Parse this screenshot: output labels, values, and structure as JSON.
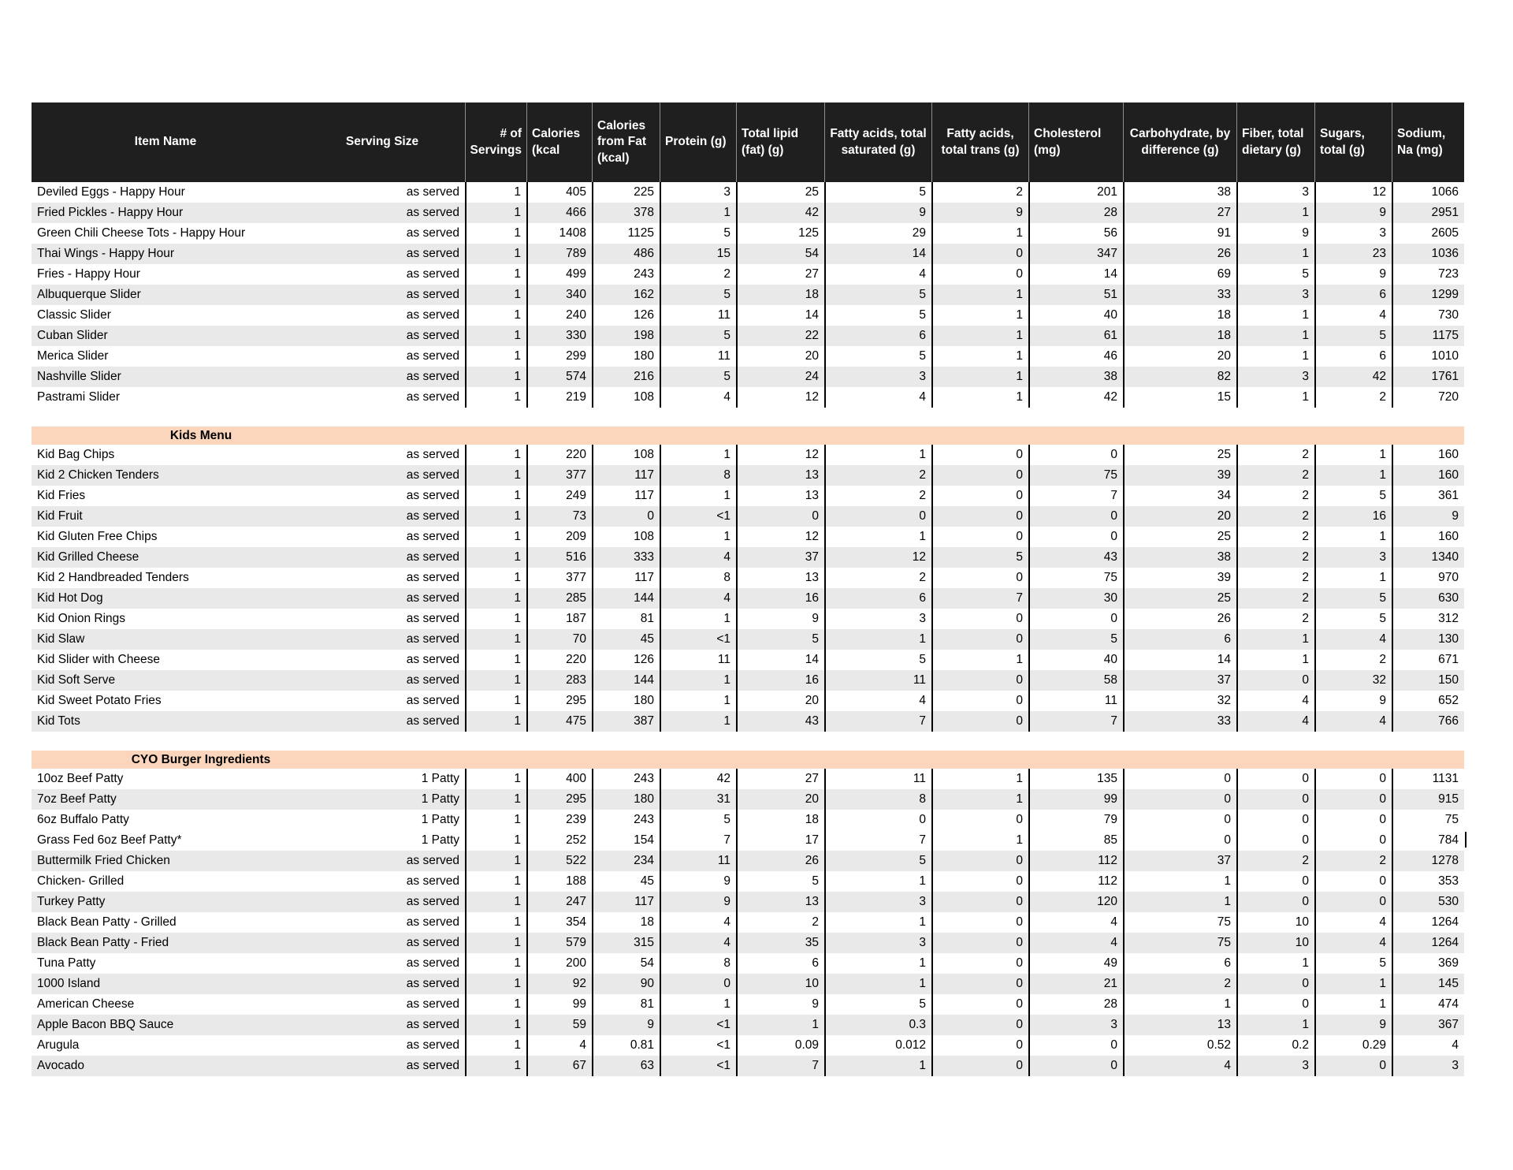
{
  "colors": {
    "header_bg": "#1f1f1f",
    "header_text": "#ffffff",
    "row_stripe": "#e9e9e9",
    "section_bar_bg": "#fbd6bc",
    "grid_line": "#000000"
  },
  "table": {
    "columns": [
      "Item Name",
      "Serving Size",
      "# of Servings",
      "Calories (kcal",
      "Calories from Fat (kcal)",
      "Protein (g)",
      "Total lipid (fat) (g)",
      "Fatty acids, total saturated (g)",
      "Fatty acids, total trans (g)",
      "Cholesterol (mg)",
      "Carbohydrate, by difference (g)",
      "Fiber, total dietary (g)",
      "Sugars, total (g)",
      "Sodium, Na (mg)"
    ]
  },
  "sections": [
    {
      "title": "",
      "rows": [
        {
          "name": "Deviled Eggs - Happy Hour",
          "serving": "as served",
          "shaded": false,
          "values": [
            "1",
            "405",
            "225",
            "3",
            "25",
            "5",
            "2",
            "201",
            "38",
            "3",
            "12",
            "1066"
          ]
        },
        {
          "name": "Fried Pickles - Happy Hour",
          "serving": "as served",
          "shaded": true,
          "values": [
            "1",
            "466",
            "378",
            "1",
            "42",
            "9",
            "9",
            "28",
            "27",
            "1",
            "9",
            "2951"
          ]
        },
        {
          "name": "Green Chili Cheese Tots - Happy Hour",
          "serving": "as served",
          "shaded": false,
          "values": [
            "1",
            "1408",
            "1125",
            "5",
            "125",
            "29",
            "1",
            "56",
            "91",
            "9",
            "3",
            "2605"
          ]
        },
        {
          "name": "Thai Wings - Happy Hour",
          "serving": "as served",
          "shaded": true,
          "values": [
            "1",
            "789",
            "486",
            "15",
            "54",
            "14",
            "0",
            "347",
            "26",
            "1",
            "23",
            "1036"
          ]
        },
        {
          "name": "Fries - Happy Hour",
          "serving": "as served",
          "shaded": false,
          "values": [
            "1",
            "499",
            "243",
            "2",
            "27",
            "4",
            "0",
            "14",
            "69",
            "5",
            "9",
            "723"
          ]
        },
        {
          "name": "Albuquerque Slider",
          "serving": "as served",
          "shaded": true,
          "values": [
            "1",
            "340",
            "162",
            "5",
            "18",
            "5",
            "1",
            "51",
            "33",
            "3",
            "6",
            "1299"
          ]
        },
        {
          "name": "Classic Slider",
          "serving": "as served",
          "shaded": false,
          "values": [
            "1",
            "240",
            "126",
            "11",
            "14",
            "5",
            "1",
            "40",
            "18",
            "1",
            "4",
            "730"
          ]
        },
        {
          "name": "Cuban Slider",
          "serving": "as served",
          "shaded": true,
          "values": [
            "1",
            "330",
            "198",
            "5",
            "22",
            "6",
            "1",
            "61",
            "18",
            "1",
            "5",
            "1175"
          ]
        },
        {
          "name": "Merica Slider",
          "serving": "as served",
          "shaded": false,
          "values": [
            "1",
            "299",
            "180",
            "11",
            "20",
            "5",
            "1",
            "46",
            "20",
            "1",
            "6",
            "1010"
          ]
        },
        {
          "name": "Nashville Slider",
          "serving": "as served",
          "shaded": true,
          "values": [
            "1",
            "574",
            "216",
            "5",
            "24",
            "3",
            "1",
            "38",
            "82",
            "3",
            "42",
            "1761"
          ]
        },
        {
          "name": "Pastrami Slider",
          "serving": "as served",
          "shaded": false,
          "values": [
            "1",
            "219",
            "108",
            "4",
            "12",
            "4",
            "1",
            "42",
            "15",
            "1",
            "2",
            "720"
          ]
        }
      ]
    },
    {
      "title": "Kids Menu",
      "rows": [
        {
          "name": "Kid Bag Chips",
          "serving": "as served",
          "shaded": false,
          "values": [
            "1",
            "220",
            "108",
            "1",
            "12",
            "1",
            "0",
            "0",
            "25",
            "2",
            "1",
            "160"
          ]
        },
        {
          "name": "Kid 2 Chicken Tenders",
          "serving": "as served",
          "shaded": true,
          "values": [
            "1",
            "377",
            "117",
            "8",
            "13",
            "2",
            "0",
            "75",
            "39",
            "2",
            "1",
            "160"
          ]
        },
        {
          "name": "Kid Fries",
          "serving": "as served",
          "shaded": false,
          "values": [
            "1",
            "249",
            "117",
            "1",
            "13",
            "2",
            "0",
            "7",
            "34",
            "2",
            "5",
            "361"
          ]
        },
        {
          "name": "Kid Fruit",
          "serving": "as served",
          "shaded": true,
          "values": [
            "1",
            "73",
            "0",
            "<1",
            "0",
            "0",
            "0",
            "0",
            "20",
            "2",
            "16",
            "9"
          ]
        },
        {
          "name": "Kid Gluten Free Chips",
          "serving": "as served",
          "shaded": false,
          "values": [
            "1",
            "209",
            "108",
            "1",
            "12",
            "1",
            "0",
            "0",
            "25",
            "2",
            "1",
            "160"
          ]
        },
        {
          "name": "Kid Grilled Cheese",
          "serving": "as served",
          "shaded": true,
          "values": [
            "1",
            "516",
            "333",
            "4",
            "37",
            "12",
            "5",
            "43",
            "38",
            "2",
            "3",
            "1340"
          ]
        },
        {
          "name": "Kid 2 Handbreaded Tenders",
          "serving": "as served",
          "shaded": false,
          "values": [
            "1",
            "377",
            "117",
            "8",
            "13",
            "2",
            "0",
            "75",
            "39",
            "2",
            "1",
            "970"
          ]
        },
        {
          "name": "Kid Hot Dog",
          "serving": "as served",
          "shaded": true,
          "values": [
            "1",
            "285",
            "144",
            "4",
            "16",
            "6",
            "7",
            "30",
            "25",
            "2",
            "5",
            "630"
          ]
        },
        {
          "name": "Kid Onion Rings",
          "serving": "as served",
          "shaded": false,
          "values": [
            "1",
            "187",
            "81",
            "1",
            "9",
            "3",
            "0",
            "0",
            "26",
            "2",
            "5",
            "312"
          ]
        },
        {
          "name": "Kid Slaw",
          "serving": "as served",
          "shaded": true,
          "values": [
            "1",
            "70",
            "45",
            "<1",
            "5",
            "1",
            "0",
            "5",
            "6",
            "1",
            "4",
            "130"
          ]
        },
        {
          "name": "Kid Slider with Cheese",
          "serving": "as served",
          "shaded": false,
          "values": [
            "1",
            "220",
            "126",
            "11",
            "14",
            "5",
            "1",
            "40",
            "14",
            "1",
            "2",
            "671"
          ]
        },
        {
          "name": "Kid Soft Serve",
          "serving": "as served",
          "shaded": true,
          "values": [
            "1",
            "283",
            "144",
            "1",
            "16",
            "11",
            "0",
            "58",
            "37",
            "0",
            "32",
            "150"
          ]
        },
        {
          "name": "Kid Sweet Potato Fries",
          "serving": "as served",
          "shaded": false,
          "values": [
            "1",
            "295",
            "180",
            "1",
            "20",
            "4",
            "0",
            "11",
            "32",
            "4",
            "9",
            "652"
          ]
        },
        {
          "name": "Kid Tots",
          "serving": "as served",
          "shaded": true,
          "values": [
            "1",
            "475",
            "387",
            "1",
            "43",
            "7",
            "0",
            "7",
            "33",
            "4",
            "4",
            "766"
          ]
        }
      ]
    },
    {
      "title": "CYO Burger Ingredients",
      "rows": [
        {
          "name": "10oz Beef Patty",
          "serving": "1 Patty",
          "shaded": false,
          "values": [
            "1",
            "400",
            "243",
            "42",
            "27",
            "11",
            "1",
            "135",
            "0",
            "0",
            "0",
            "1131"
          ]
        },
        {
          "name": "7oz Beef Patty",
          "serving": "1 Patty",
          "shaded": true,
          "values": [
            "1",
            "295",
            "180",
            "31",
            "20",
            "8",
            "1",
            "99",
            "0",
            "0",
            "0",
            "915"
          ]
        },
        {
          "name": "6oz Buffalo Patty",
          "serving": "1 Patty",
          "shaded": false,
          "values": [
            "1",
            "239",
            "243",
            "5",
            "18",
            "0",
            "0",
            "79",
            "0",
            "0",
            "0",
            "75"
          ]
        },
        {
          "name": "Grass Fed 6oz Beef Patty*",
          "serving": "1 Patty",
          "shaded": false,
          "values": [
            "1",
            "252",
            "154",
            "7",
            "17",
            "7",
            "1",
            "85",
            "0",
            "0",
            "0",
            "784"
          ]
        },
        {
          "name": "Buttermilk Fried Chicken",
          "serving": "as served",
          "shaded": true,
          "values": [
            "1",
            "522",
            "234",
            "11",
            "26",
            "5",
            "0",
            "112",
            "37",
            "2",
            "2",
            "1278"
          ]
        },
        {
          "name": "Chicken- Grilled",
          "serving": "as served",
          "shaded": false,
          "values": [
            "1",
            "188",
            "45",
            "9",
            "5",
            "1",
            "0",
            "112",
            "1",
            "0",
            "0",
            "353"
          ]
        },
        {
          "name": "Turkey Patty",
          "serving": "as served",
          "shaded": true,
          "values": [
            "1",
            "247",
            "117",
            "9",
            "13",
            "3",
            "0",
            "120",
            "1",
            "0",
            "0",
            "530"
          ]
        },
        {
          "name": "Black Bean Patty - Grilled",
          "serving": "as served",
          "shaded": false,
          "values": [
            "1",
            "354",
            "18",
            "4",
            "2",
            "1",
            "0",
            "4",
            "75",
            "10",
            "4",
            "1264"
          ]
        },
        {
          "name": "Black Bean Patty - Fried",
          "serving": "as served",
          "shaded": true,
          "values": [
            "1",
            "579",
            "315",
            "4",
            "35",
            "3",
            "0",
            "4",
            "75",
            "10",
            "4",
            "1264"
          ]
        },
        {
          "name": "Tuna Patty",
          "serving": "as served",
          "shaded": false,
          "values": [
            "1",
            "200",
            "54",
            "8",
            "6",
            "1",
            "0",
            "49",
            "6",
            "1",
            "5",
            "369"
          ]
        },
        {
          "name": "1000 Island",
          "serving": "as served",
          "shaded": true,
          "values": [
            "1",
            "92",
            "90",
            "0",
            "10",
            "1",
            "0",
            "21",
            "2",
            "0",
            "1",
            "145"
          ]
        },
        {
          "name": "American Cheese",
          "serving": "as served",
          "shaded": false,
          "values": [
            "1",
            "99",
            "81",
            "1",
            "9",
            "5",
            "0",
            "28",
            "1",
            "0",
            "1",
            "474"
          ]
        },
        {
          "name": "Apple Bacon BBQ Sauce",
          "serving": "as served",
          "shaded": true,
          "values": [
            "1",
            "59",
            "9",
            "<1",
            "1",
            "0.3",
            "0",
            "3",
            "13",
            "1",
            "9",
            "367"
          ]
        },
        {
          "name": "Arugula",
          "serving": "as served",
          "shaded": false,
          "values": [
            "1",
            "4",
            "0.81",
            "<1",
            "0.09",
            "0.012",
            "0",
            "0",
            "0.52",
            "0.2",
            "0.29",
            "4"
          ]
        },
        {
          "name": "Avocado",
          "serving": "as served",
          "shaded": true,
          "values": [
            "1",
            "67",
            "63",
            "<1",
            "7",
            "1",
            "0",
            "0",
            "4",
            "3",
            "0",
            "3"
          ]
        }
      ]
    }
  ]
}
